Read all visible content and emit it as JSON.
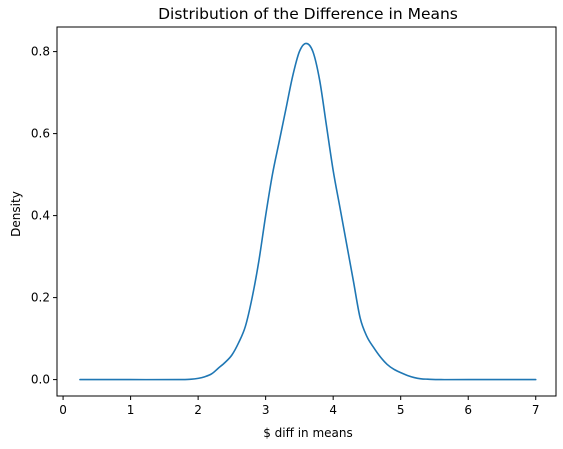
{
  "chart_data": {
    "type": "line",
    "title": "Distribution of the Difference in Means",
    "xlabel": "$ diff in means",
    "ylabel": "Density",
    "xlim": [
      -0.09,
      7.3
    ],
    "ylim": [
      -0.04,
      0.86
    ],
    "x_ticks": [
      0,
      1,
      2,
      3,
      4,
      5,
      6,
      7
    ],
    "x_tick_labels": [
      "0",
      "1",
      "2",
      "3",
      "4",
      "5",
      "6",
      "7"
    ],
    "y_ticks": [
      0.0,
      0.2,
      0.4,
      0.6,
      0.8
    ],
    "y_tick_labels": [
      "0.0",
      "0.2",
      "0.4",
      "0.6",
      "0.8"
    ],
    "grid": false,
    "legend": "none",
    "series": [
      {
        "color": "#1f77b4",
        "x": [
          0.25,
          1.0,
          1.7,
          1.9,
          2.0,
          2.1,
          2.2,
          2.3,
          2.4,
          2.5,
          2.6,
          2.7,
          2.8,
          2.9,
          3.0,
          3.1,
          3.2,
          3.3,
          3.4,
          3.5,
          3.6,
          3.7,
          3.8,
          3.9,
          4.0,
          4.1,
          4.2,
          4.3,
          4.4,
          4.5,
          4.6,
          4.7,
          4.8,
          4.9,
          5.0,
          5.1,
          5.2,
          5.3,
          5.4,
          5.6,
          6.0,
          7.0
        ],
        "y": [
          0.0,
          0.0,
          0.0,
          0.001,
          0.003,
          0.007,
          0.014,
          0.028,
          0.042,
          0.06,
          0.09,
          0.13,
          0.2,
          0.29,
          0.4,
          0.5,
          0.58,
          0.66,
          0.74,
          0.8,
          0.82,
          0.8,
          0.73,
          0.62,
          0.51,
          0.42,
          0.33,
          0.24,
          0.15,
          0.105,
          0.078,
          0.055,
          0.037,
          0.025,
          0.017,
          0.01,
          0.005,
          0.002,
          0.001,
          0.0,
          0.0,
          0.0
        ]
      }
    ]
  }
}
